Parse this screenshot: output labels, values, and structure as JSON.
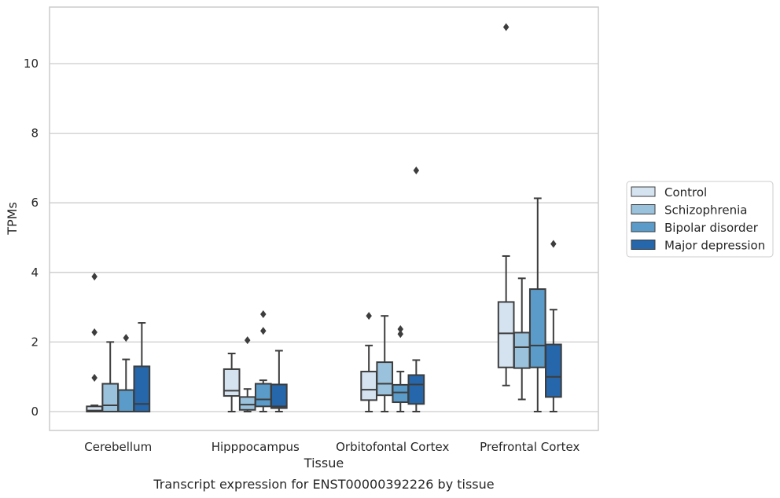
{
  "caption": "Transcript expression for ENST00000392226 by tissue",
  "chart_data": {
    "type": "boxplot",
    "xlabel": "Tissue",
    "ylabel": "TPMs",
    "ylim": [
      -0.5,
      11.6
    ],
    "yticks": [
      0,
      2,
      4,
      6,
      8,
      10
    ],
    "grid": "horizontal",
    "legend_position": "right",
    "categories": [
      "Cerebellum",
      "Hipppocampus",
      "Orbitofontal Cortex",
      "Prefrontal Cortex"
    ],
    "series": [
      {
        "name": "Control",
        "color": "#d5e3f1",
        "boxes": [
          {
            "whislo": 0,
            "q1": 0,
            "med": 0.03,
            "q3": 0.15,
            "whishi": 0.18,
            "fliers": [
              0.97,
              2.28,
              3.88
            ]
          },
          {
            "whislo": 0,
            "q1": 0.45,
            "med": 0.6,
            "q3": 1.22,
            "whishi": 1.67,
            "fliers": []
          },
          {
            "whislo": 0,
            "q1": 0.33,
            "med": 0.63,
            "q3": 1.15,
            "whishi": 1.9,
            "fliers": [
              2.75
            ]
          },
          {
            "whislo": 0.75,
            "q1": 1.27,
            "med": 2.25,
            "q3": 3.15,
            "whishi": 4.47,
            "fliers": [
              11.05
            ]
          }
        ]
      },
      {
        "name": "Schizophrenia",
        "color": "#9ac2dc",
        "boxes": [
          {
            "whislo": 0,
            "q1": 0,
            "med": 0.18,
            "q3": 0.8,
            "whishi": 2.0,
            "fliers": []
          },
          {
            "whislo": 0,
            "q1": 0.05,
            "med": 0.2,
            "q3": 0.42,
            "whishi": 0.65,
            "fliers": [
              2.05
            ]
          },
          {
            "whislo": 0,
            "q1": 0.47,
            "med": 0.8,
            "q3": 1.42,
            "whishi": 2.75,
            "fliers": []
          },
          {
            "whislo": 0.35,
            "q1": 1.25,
            "med": 1.85,
            "q3": 2.27,
            "whishi": 3.83,
            "fliers": []
          }
        ]
      },
      {
        "name": "Bipolar disorder",
        "color": "#5a9bc9",
        "boxes": [
          {
            "whislo": 0,
            "q1": 0,
            "med": 0.0,
            "q3": 0.62,
            "whishi": 1.5,
            "fliers": [
              2.12
            ]
          },
          {
            "whislo": 0,
            "q1": 0.15,
            "med": 0.35,
            "q3": 0.8,
            "whishi": 0.9,
            "fliers": [
              2.32,
              2.8
            ]
          },
          {
            "whislo": 0,
            "q1": 0.27,
            "med": 0.55,
            "q3": 0.77,
            "whishi": 1.15,
            "fliers": [
              2.23,
              2.37
            ]
          },
          {
            "whislo": 0,
            "q1": 1.27,
            "med": 1.9,
            "q3": 3.52,
            "whishi": 6.13,
            "fliers": []
          }
        ]
      },
      {
        "name": "Major depression",
        "color": "#2666aa",
        "boxes": [
          {
            "whislo": 0,
            "q1": 0,
            "med": 0.22,
            "q3": 1.3,
            "whishi": 2.55,
            "fliers": []
          },
          {
            "whislo": 0,
            "q1": 0.1,
            "med": 0.15,
            "q3": 0.78,
            "whishi": 1.75,
            "fliers": []
          },
          {
            "whislo": 0,
            "q1": 0.22,
            "med": 0.78,
            "q3": 1.05,
            "whishi": 1.48,
            "fliers": [
              6.93
            ]
          },
          {
            "whislo": 0,
            "q1": 0.42,
            "med": 1.0,
            "q3": 1.93,
            "whishi": 2.93,
            "fliers": [
              4.82
            ]
          }
        ]
      }
    ]
  }
}
